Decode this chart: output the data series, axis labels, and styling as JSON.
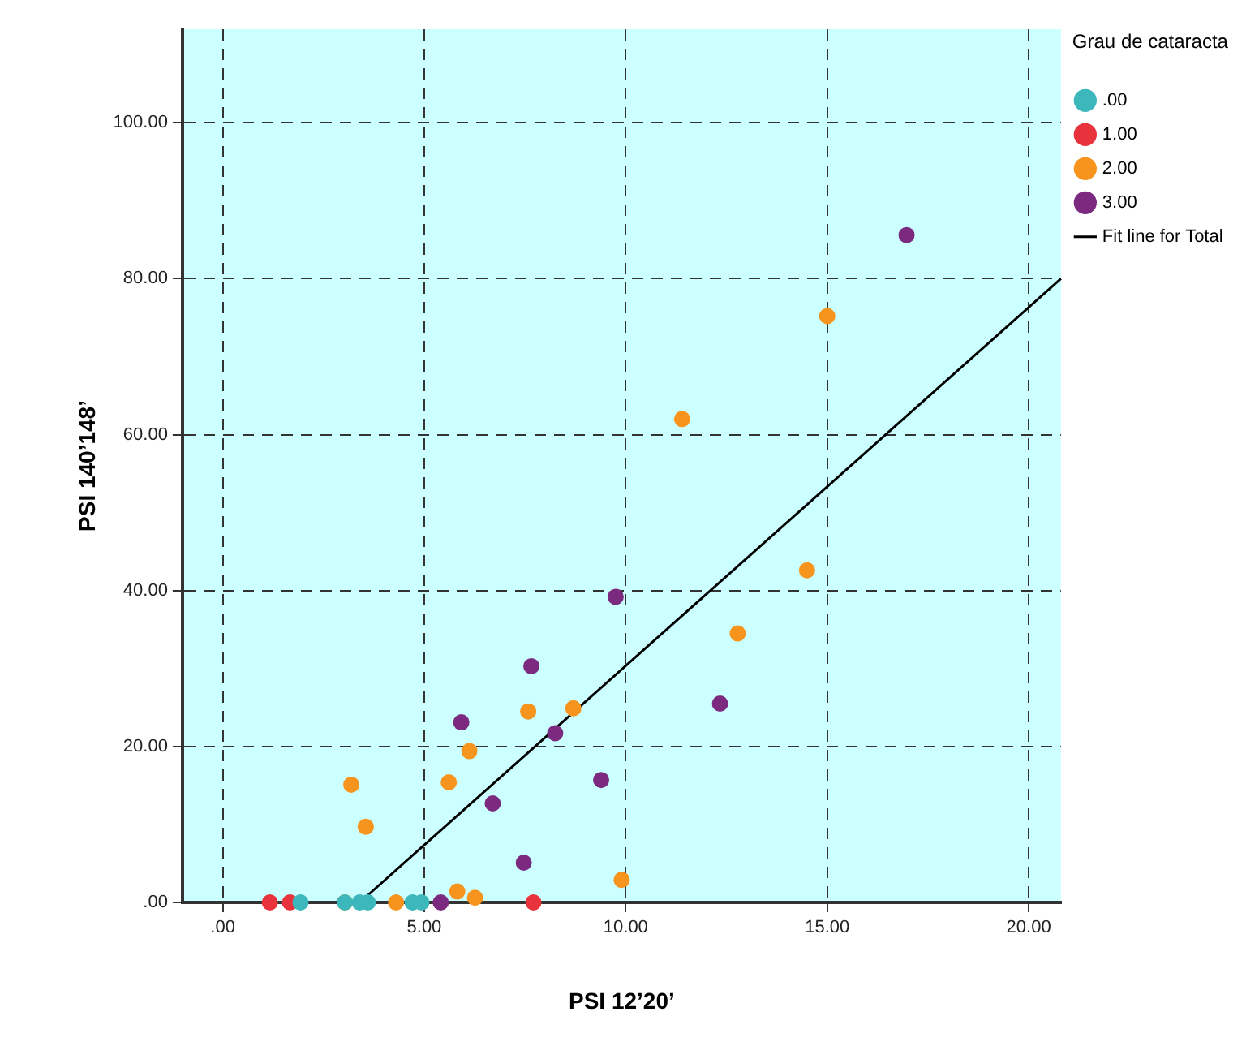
{
  "chart_data": {
    "type": "scatter",
    "xlabel": "PSI 12’20’",
    "ylabel": "PSI 140’148’",
    "legend_title": "Grau de cataracta",
    "legend": "top right",
    "grid": true,
    "marker": "circle",
    "xlim": [
      -1,
      20.8
    ],
    "ylim": [
      0,
      112
    ],
    "xticks": [
      {
        "value": 0,
        "label": ".00"
      },
      {
        "value": 5,
        "label": "5.00"
      },
      {
        "value": 10,
        "label": "10.00"
      },
      {
        "value": 15,
        "label": "15.00"
      },
      {
        "value": 20,
        "label": "20.00"
      }
    ],
    "yticks": [
      {
        "value": 0,
        "label": ".00"
      },
      {
        "value": 20,
        "label": "20.00"
      },
      {
        "value": 40,
        "label": "40.00"
      },
      {
        "value": 60,
        "label": "60.00"
      },
      {
        "value": 80,
        "label": "80.00"
      },
      {
        "value": 100,
        "label": "100.00"
      }
    ],
    "series": [
      {
        "name": ".00",
        "color": "#3cb8bc",
        "x": [
          1.93,
          3.03,
          3.4,
          3.6,
          4.71,
          4.93
        ],
        "values": [
          0,
          0,
          0,
          0,
          0,
          0
        ]
      },
      {
        "name": "1.00",
        "color": "#e8323c",
        "x": [
          1.17,
          1.67,
          7.71
        ],
        "values": [
          0,
          0,
          0
        ]
      },
      {
        "name": "2.00",
        "color": "#f7941d",
        "x": [
          3.03,
          4.3,
          5.82,
          6.26,
          9.9,
          3.55,
          3.19,
          5.61,
          6.12,
          7.43,
          7.58,
          8.7,
          12.78,
          14.5,
          11.4,
          15.0
        ],
        "values": [
          0,
          0,
          1.4,
          0.6,
          2.9,
          9.7,
          15.1,
          15.4,
          19.4,
          null,
          24.5,
          24.9,
          34.5,
          42.6,
          62,
          75.2
        ]
      },
      {
        "name": "3.00",
        "color": "#7b2a7f",
        "x": [
          5.41,
          7.47,
          6.7,
          9.39,
          8.25,
          5.92,
          7.66,
          12.34,
          9.75,
          16.97
        ],
        "values": [
          0,
          5.1,
          12.7,
          15.7,
          21.7,
          23.1,
          30.3,
          25.5,
          39.2,
          85.6
        ]
      },
      {
        "name": "Fit line for Total",
        "type": "line",
        "color": "#000000",
        "line_style": "solid",
        "marker": "none",
        "x": [
          3.4,
          20.8
        ],
        "values": [
          0,
          80
        ]
      }
    ]
  }
}
